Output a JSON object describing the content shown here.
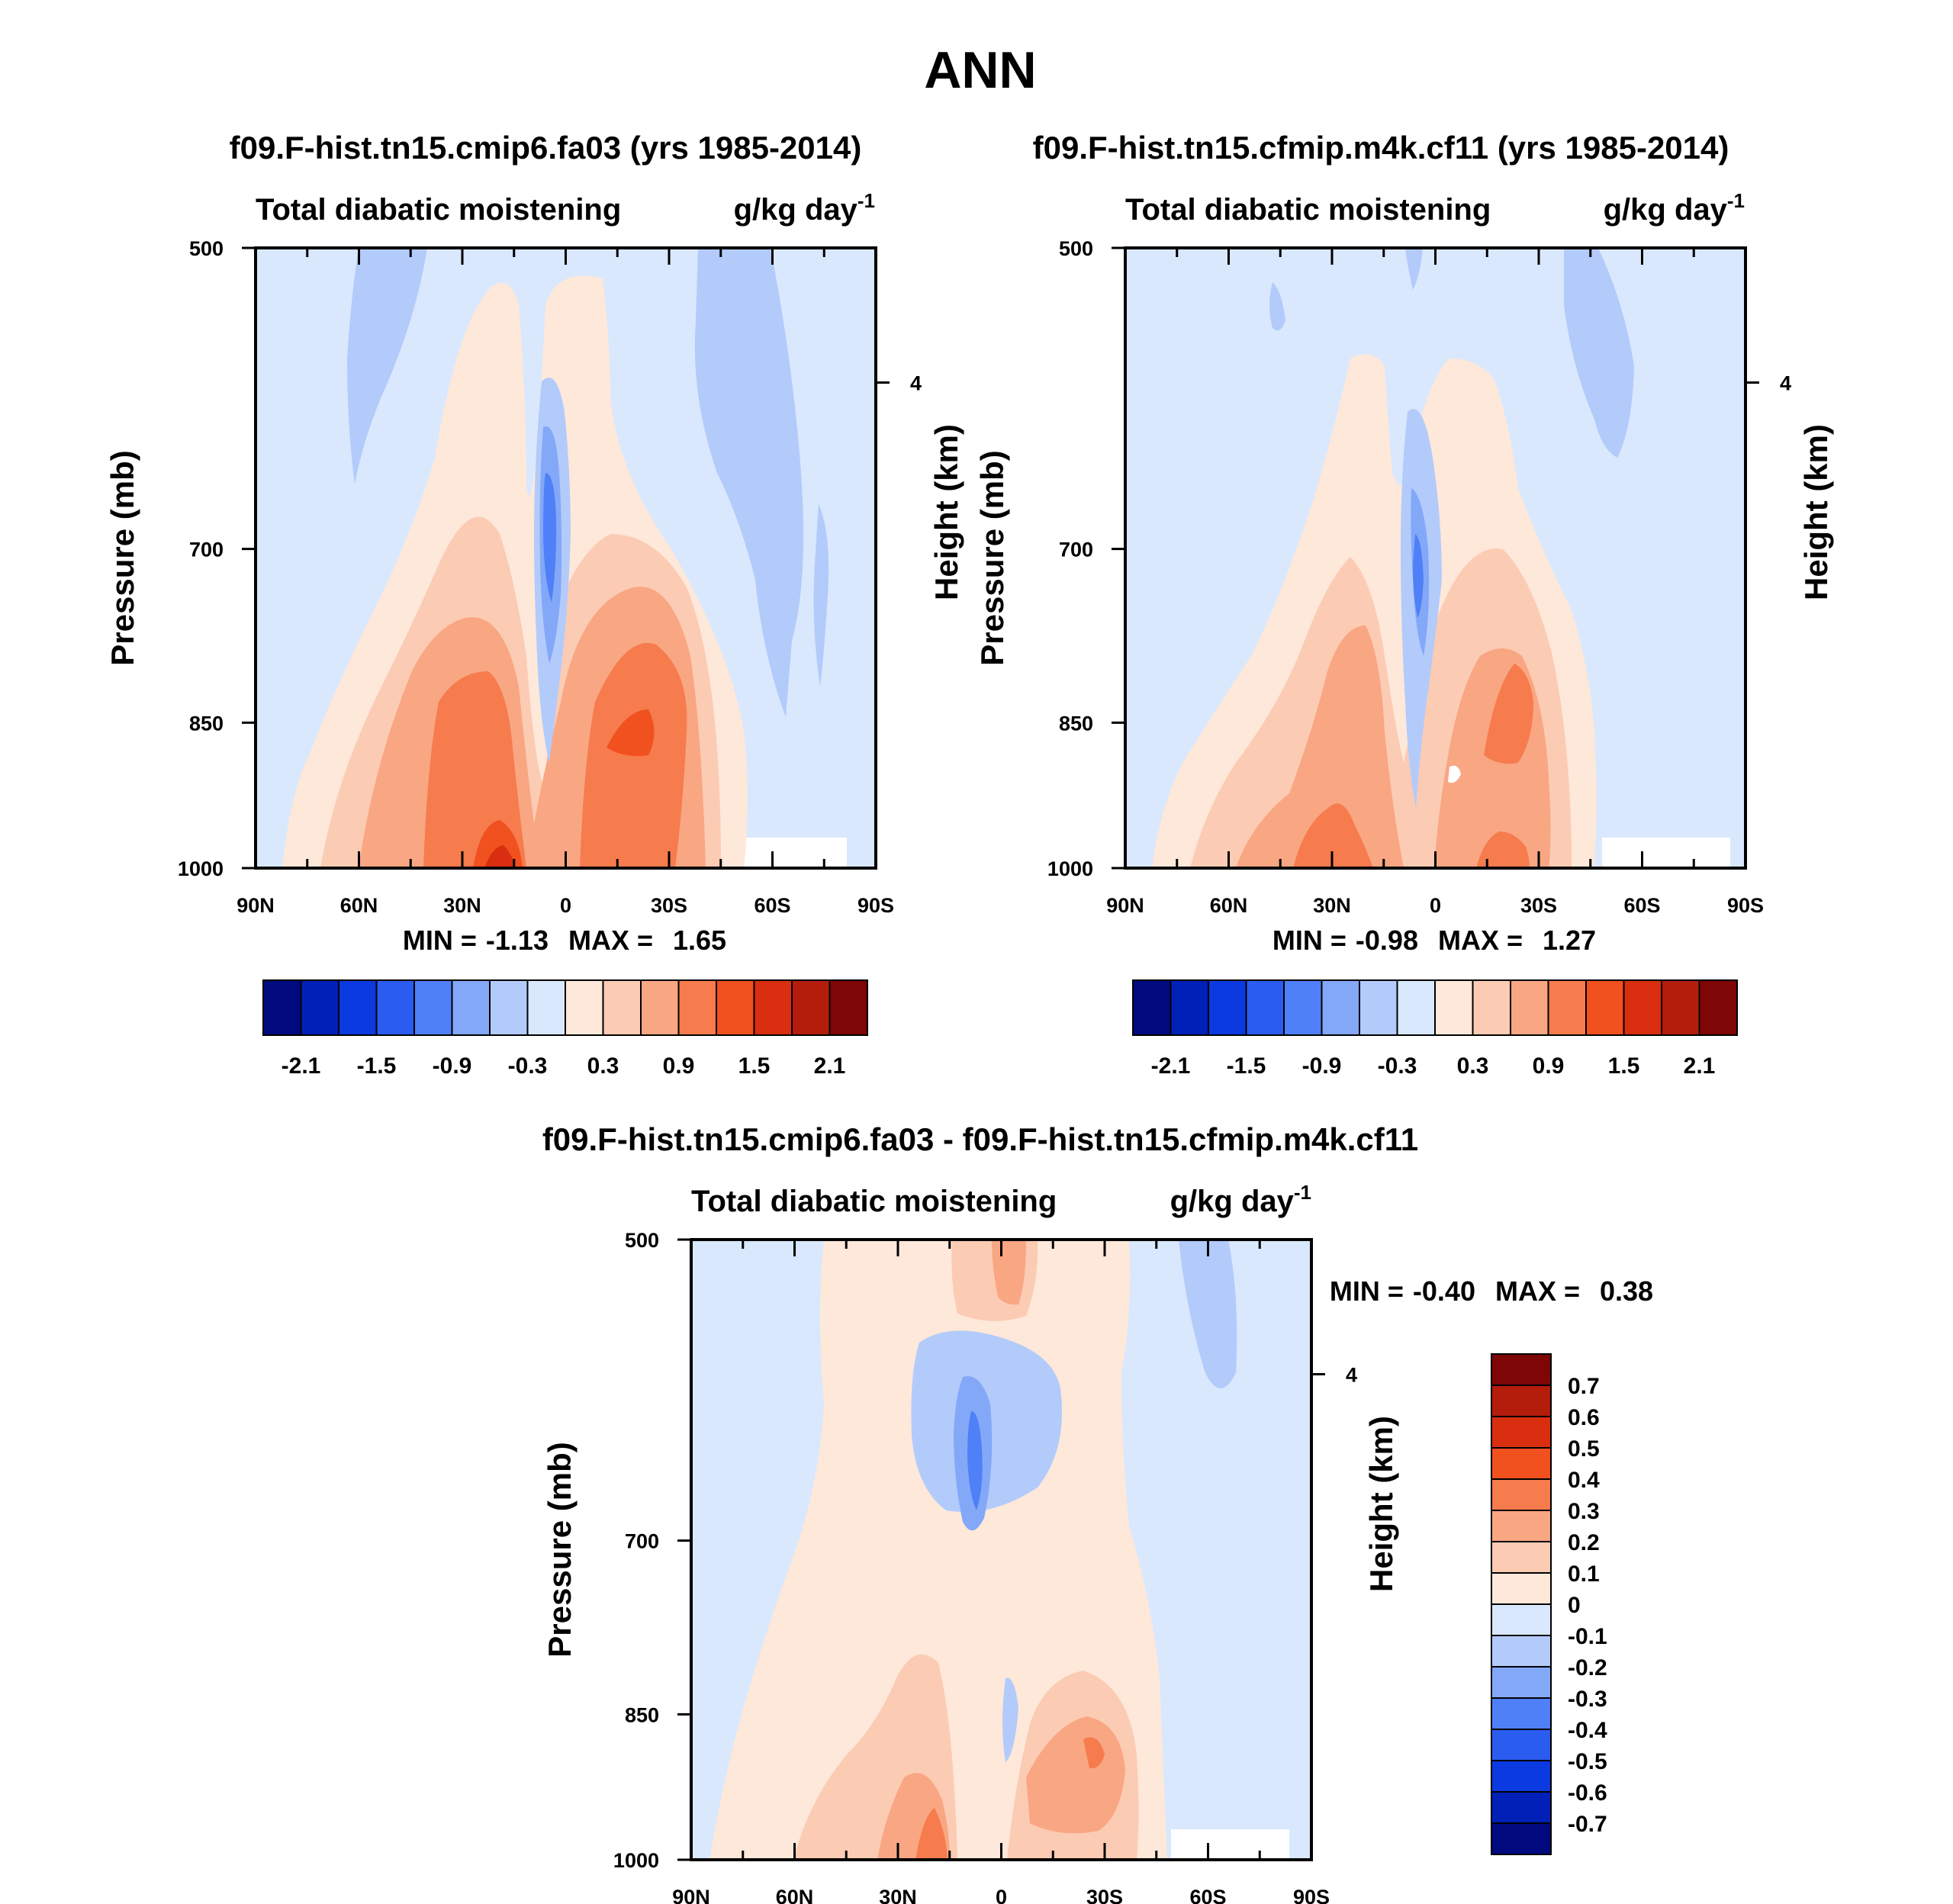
{
  "title": "ANN",
  "chart_data": [
    {
      "type": "heatmap",
      "title": "f09.F-hist.tn15.cmip6.fa03 (yrs 1985-2014)",
      "variable": "Total diabatic moistening",
      "units": "g/kg day",
      "units_exp": "-1",
      "xlabel": "",
      "ylabel": "Pressure (mb)",
      "ylabel_right": "Height (km)",
      "x_ticks": [
        "90N",
        "60N",
        "30N",
        "0",
        "30S",
        "60S",
        "90S"
      ],
      "y_ticks": [
        500,
        700,
        850,
        1000
      ],
      "y_right_ticks": [
        4
      ],
      "xlim": [
        90,
        -90
      ],
      "ylim": [
        1000,
        500
      ],
      "stats": {
        "min_label": "MIN =",
        "min": "-1.13",
        "max_label": "MAX =",
        "max": "1.65"
      },
      "colorbar_labels": [
        "-2.1",
        "-1.5",
        "-0.9",
        "-0.3",
        "0.3",
        "0.9",
        "1.5",
        "2.1"
      ]
    },
    {
      "type": "heatmap",
      "title": "f09.F-hist.tn15.cfmip.m4k.cf11 (yrs 1985-2014)",
      "variable": "Total diabatic moistening",
      "units": "g/kg day",
      "units_exp": "-1",
      "xlabel": "",
      "ylabel": "Pressure (mb)",
      "ylabel_right": "Height (km)",
      "x_ticks": [
        "90N",
        "60N",
        "30N",
        "0",
        "30S",
        "60S",
        "90S"
      ],
      "y_ticks": [
        500,
        700,
        850,
        1000
      ],
      "y_right_ticks": [
        4
      ],
      "xlim": [
        90,
        -90
      ],
      "ylim": [
        1000,
        500
      ],
      "stats": {
        "min_label": "MIN =",
        "min": "-0.98",
        "max_label": "MAX =",
        "max": "1.27"
      },
      "colorbar_labels": [
        "-2.1",
        "-1.5",
        "-0.9",
        "-0.3",
        "0.3",
        "0.9",
        "1.5",
        "2.1"
      ]
    },
    {
      "type": "heatmap",
      "title": "f09.F-hist.tn15.cmip6.fa03 - f09.F-hist.tn15.cfmip.m4k.cf11",
      "variable": "Total diabatic moistening",
      "units": "g/kg day",
      "units_exp": "-1",
      "xlabel": "",
      "ylabel": "Pressure (mb)",
      "ylabel_right": "Height (km)",
      "x_ticks": [
        "90N",
        "60N",
        "30N",
        "0",
        "30S",
        "60S",
        "90S"
      ],
      "y_ticks": [
        500,
        700,
        850,
        1000
      ],
      "y_right_ticks": [
        4
      ],
      "xlim": [
        90,
        -90
      ],
      "ylim": [
        1000,
        500
      ],
      "stats": {
        "min_label": "MIN =",
        "min": "-0.40",
        "max_label": "MAX =",
        "max": "0.38"
      },
      "colorbar_labels": [
        "0.7",
        "0.6",
        "0.5",
        "0.4",
        "0.3",
        "0.2",
        "0.1",
        "0",
        "-0.1",
        "-0.2",
        "-0.3",
        "-0.4",
        "-0.5",
        "-0.6",
        "-0.7"
      ]
    }
  ],
  "colors": {
    "palette": [
      "#000a7e",
      "#0020b8",
      "#0a3ae0",
      "#2a5cf0",
      "#4f80f7",
      "#84a8f8",
      "#b3cbfb",
      "#d9e8fd",
      "#fde8da",
      "#fccbb3",
      "#f9a683",
      "#f67b4d",
      "#f1501f",
      "#d92e10",
      "#b41c0c",
      "#7e0606"
    ],
    "background_field": "#d9e8fd"
  }
}
